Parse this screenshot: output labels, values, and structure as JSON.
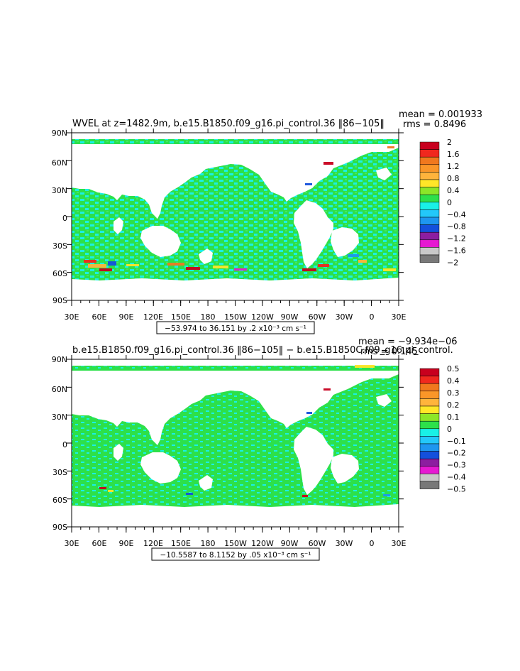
{
  "panels": [
    {
      "title": "WVEL at z=1482.9m, b.e15.B1850.f09_g16.pi_control.36  ‖86−105‖",
      "mean_text": "mean = 0.001933",
      "rms_text": "rms = 0.8496",
      "caption_text": "−53.974 to 36.151 by .2 x10⁻³ cm s⁻¹",
      "colorbar_labels": [
        "2",
        "1.6",
        "1.2",
        "0.8",
        "0.4",
        "0",
        "−0.4",
        "−0.8",
        "−1.2",
        "−1.6",
        "−2"
      ]
    },
    {
      "title": "b.e15.B1850.f09_g16.pi_control.36  ‖86−105‖  −  b.e15.B1850C.f09_g16.pi_control.",
      "mean_text": "mean = −9.934e−06",
      "rms_text": "rms = 0.145",
      "caption_text": "−10.5587 to 8.1152 by .05 x10⁻³ cm s⁻¹",
      "colorbar_labels": [
        "0.5",
        "0.4",
        "0.3",
        "0.2",
        "0.1",
        "0",
        "−0.1",
        "−0.2",
        "−0.3",
        "−0.4",
        "−0.5"
      ]
    }
  ],
  "lat_labels": [
    "90N",
    "60N",
    "30N",
    "0",
    "30S",
    "60S",
    "90S"
  ],
  "lon_labels": [
    "30E",
    "60E",
    "90E",
    "120E",
    "150E",
    "180",
    "150W",
    "120W",
    "90W",
    "60W",
    "30W",
    "0",
    "30E"
  ],
  "colors": {
    "ocean_base": "#2de04a",
    "ocean_cyan": "#19f0e6",
    "land": "#ffffff",
    "palette": [
      "#c8001e",
      "#f0281e",
      "#f0781e",
      "#fa9628",
      "#ffb43c",
      "#ffe628",
      "#8ce628",
      "#2de04a",
      "#19f0e6",
      "#23c8fa",
      "#1e96f0",
      "#1450dc",
      "#8c1ea0",
      "#e619d2",
      "#c8c8c8",
      "#787878"
    ]
  }
}
